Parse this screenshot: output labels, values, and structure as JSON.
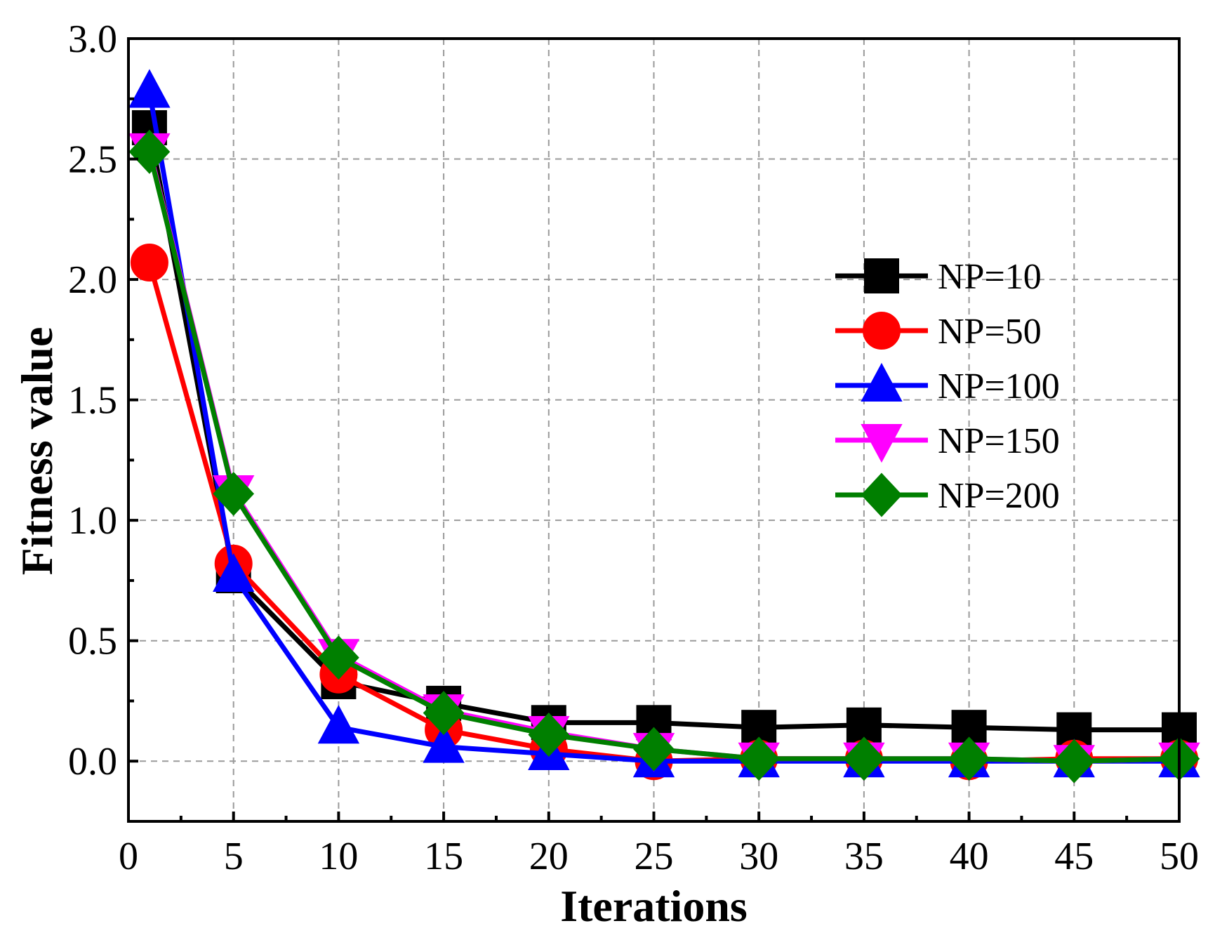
{
  "chart_data": {
    "type": "line",
    "title": "",
    "xlabel": "Iterations",
    "ylabel": "Fitness value",
    "xlim": [
      0,
      50
    ],
    "ylim": [
      -0.25,
      3.0
    ],
    "xticks": [
      0,
      5,
      10,
      15,
      20,
      25,
      30,
      35,
      40,
      45,
      50
    ],
    "yticks": [
      0.0,
      0.5,
      1.0,
      1.5,
      2.0,
      2.5,
      3.0
    ],
    "xtick_labels": [
      "0",
      "5",
      "10",
      "15",
      "20",
      "25",
      "30",
      "35",
      "40",
      "45",
      "50"
    ],
    "ytick_labels": [
      "0.0",
      "0.5",
      "1.0",
      "1.5",
      "2.0",
      "2.5",
      "3.0"
    ],
    "grid": true,
    "legend_position": "right",
    "x": [
      1,
      5,
      10,
      15,
      20,
      25,
      30,
      35,
      40,
      45,
      50
    ],
    "series": [
      {
        "name": "NP=10",
        "color": "#000000",
        "marker": "square",
        "values": [
          2.63,
          0.77,
          0.33,
          0.24,
          0.16,
          0.16,
          0.14,
          0.15,
          0.14,
          0.13,
          0.13
        ]
      },
      {
        "name": "NP=50",
        "color": "#ff0000",
        "marker": "circle",
        "values": [
          2.07,
          0.82,
          0.36,
          0.13,
          0.05,
          0.0,
          0.01,
          0.01,
          0.0,
          0.01,
          0.01
        ]
      },
      {
        "name": "NP=100",
        "color": "#0000ff",
        "marker": "triangle-up",
        "values": [
          2.78,
          0.77,
          0.14,
          0.06,
          0.03,
          0.0,
          0.0,
          0.0,
          0.0,
          0.0,
          0.0
        ]
      },
      {
        "name": "NP=150",
        "color": "#ff00ff",
        "marker": "triangle-down",
        "values": [
          2.54,
          1.12,
          0.44,
          0.21,
          0.12,
          0.05,
          0.01,
          0.01,
          0.01,
          0.0,
          0.01
        ]
      },
      {
        "name": "NP=200",
        "color": "#007f00",
        "marker": "diamond",
        "values": [
          2.53,
          1.11,
          0.43,
          0.2,
          0.11,
          0.05,
          0.01,
          0.01,
          0.01,
          0.0,
          0.01
        ]
      }
    ]
  }
}
